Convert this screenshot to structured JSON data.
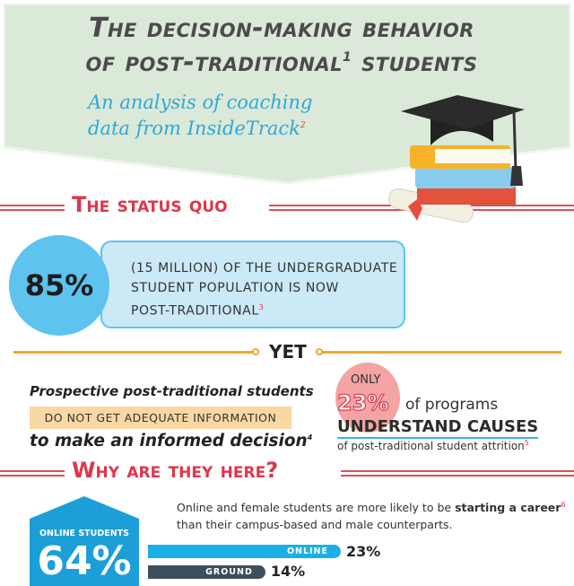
{
  "header": {
    "title_line1": "The decision-making behavior",
    "title_line2": "of post-traditional",
    "title_sup": "1",
    "title_line2_end": " students",
    "subtitle_line1": "An analysis of coaching",
    "subtitle_line2": "data from InsideTrack",
    "subtitle_sup": "2",
    "illustration": "graduation-cap-books-diploma-icon"
  },
  "status_quo": {
    "heading": "The status quo",
    "stat": "85%",
    "text_line1": "(15 MILLION) OF THE UNDERGRADUATE",
    "text_line2": "STUDENT POPULATION IS NOW",
    "text_line3": "POST-TRADITIONAL",
    "sup": "3"
  },
  "yet": {
    "label": "YET",
    "left_line1": "Prospective post-traditional students",
    "left_line2": "DO NOT GET ADEQUATE INFORMATION",
    "left_line3": "to make an informed decision",
    "left_sup": "4",
    "only": "ONLY",
    "stat": "23%",
    "of_programs": "of programs",
    "understand": "UNDERSTAND CAUSES",
    "attrition": "of post-traditional student attrition",
    "right_sup": "5"
  },
  "why": {
    "heading": "Why are they here?",
    "hex_label": "ONLINE STUDENTS",
    "hex_value": "64%",
    "text_pre": "Online and female students are more likely to be ",
    "text_bold": "starting a career",
    "text_sup": "6",
    "text_line2": "than their campus-based and male counterparts.",
    "bars": [
      {
        "label": "ONLINE",
        "value": 23,
        "display": "23%",
        "color": "#1ab0e6"
      },
      {
        "label": "GROUND",
        "value": 14,
        "display": "14%",
        "color": "#3d4f5c"
      }
    ]
  },
  "colors": {
    "banner": "#dbe9d8",
    "accent_red": "#e0354a",
    "accent_blue": "#5ec3ee",
    "accent_orange": "#f0a830"
  }
}
